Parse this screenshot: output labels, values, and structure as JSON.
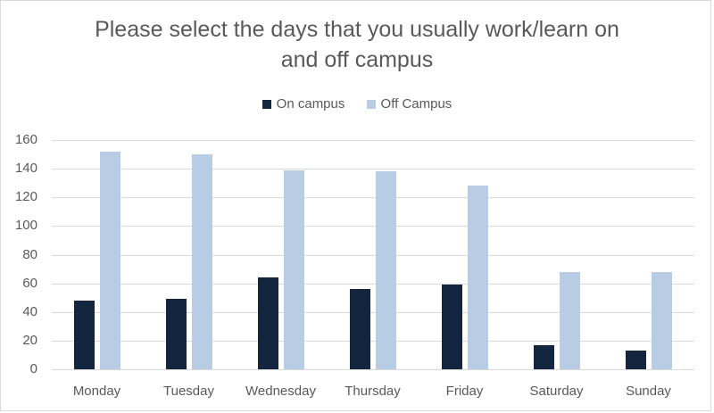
{
  "chart": {
    "title_line1": "Please select the days that you usually work/learn on",
    "title_line2": "and off campus",
    "legend": [
      {
        "label": "On campus",
        "color": "#13253F"
      },
      {
        "label": "Off Campus",
        "color": "#B8CCE4"
      }
    ],
    "y_ticks": [
      "0",
      "20",
      "40",
      "60",
      "80",
      "100",
      "120",
      "140",
      "160"
    ],
    "x_ticks": [
      "Monday",
      "Tuesday",
      "Wednesday",
      "Thursday",
      "Friday",
      "Saturday",
      "Sunday"
    ]
  },
  "chart_data": {
    "type": "bar",
    "title": "Please select the days that you usually work/learn on and off campus",
    "categories": [
      "Monday",
      "Tuesday",
      "Wednesday",
      "Thursday",
      "Friday",
      "Saturday",
      "Sunday"
    ],
    "series": [
      {
        "name": "On campus",
        "color": "#13253F",
        "values": [
          48,
          49,
          64,
          56,
          59,
          17,
          13
        ]
      },
      {
        "name": "Off Campus",
        "color": "#B8CCE4",
        "values": [
          152,
          150,
          139,
          138,
          128,
          68,
          68
        ]
      }
    ],
    "xlabel": "",
    "ylabel": "",
    "ylim": [
      0,
      160
    ],
    "y_tick_step": 20,
    "grid": true,
    "legend_position": "top"
  }
}
